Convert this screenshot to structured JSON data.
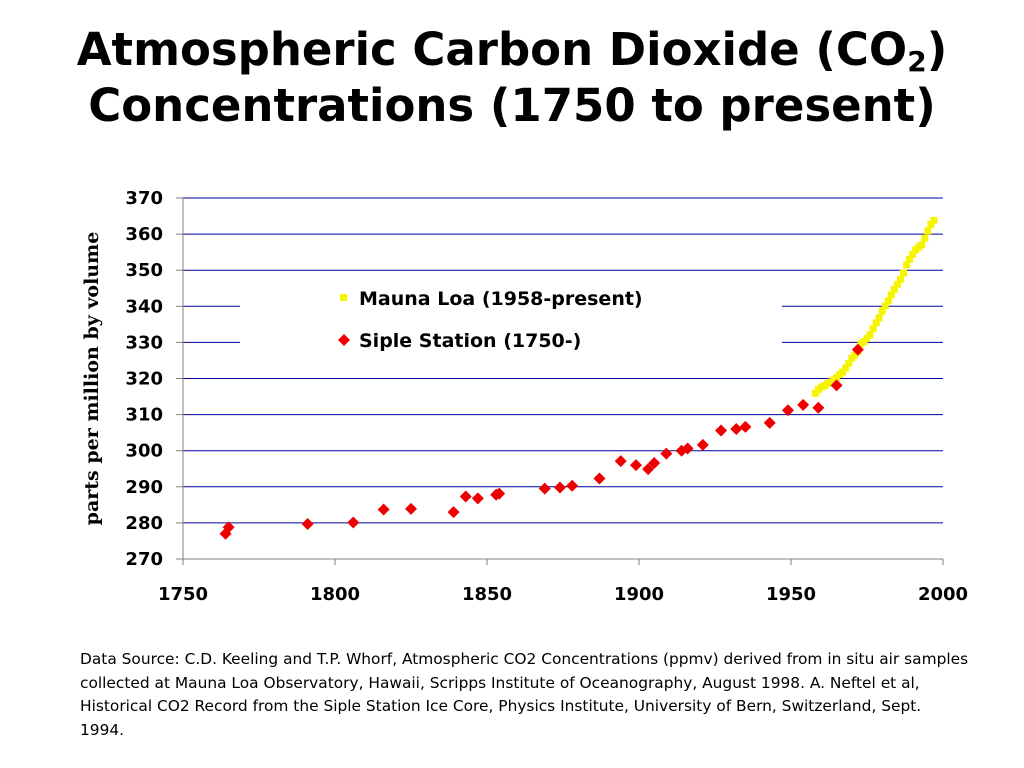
{
  "title": {
    "line1_prefix": "Atmospheric Carbon Dioxide (CO",
    "line1_subscript": "2",
    "line1_suffix": ")",
    "line2": "Concentrations (1750 to present)"
  },
  "source_note": "Data Source: C.D. Keeling and T.P. Whorf, Atmospheric CO2 Concentrations (ppmv) derived from in situ air samples collected at Mauna Loa Observatory, Hawaii, Scripps  Institute of Oceanography, August 1998.  A. Neftel et al, Historical CO2 Record from the Siple Station Ice Core, Physics Institute, University of Bern, Switzerland, Sept.  1994.",
  "colors": {
    "mauna_loa": "#f5f500",
    "siple": "#ee0000",
    "gridline": "#0000a0",
    "axis": "#808080"
  },
  "chart_data": {
    "type": "scatter",
    "title": "Atmospheric Carbon Dioxide (CO2) Concentrations (1750 to present)",
    "xlabel": "",
    "ylabel": "parts per million by volume",
    "xlim": [
      1750,
      2000
    ],
    "ylim": [
      270,
      370
    ],
    "xticks": [
      1750,
      1800,
      1850,
      1900,
      1950,
      2000
    ],
    "yticks": [
      270,
      280,
      290,
      300,
      310,
      320,
      330,
      340,
      350,
      360,
      370
    ],
    "grid": true,
    "legend_placement": "top-center",
    "series": [
      {
        "name": "Mauna Loa (1958-present)",
        "marker": "square",
        "color": "#f5f500",
        "x": [
          1958,
          1959,
          1960,
          1961,
          1962,
          1963,
          1964,
          1965,
          1966,
          1967,
          1968,
          1969,
          1970,
          1971,
          1972,
          1973,
          1974,
          1975,
          1976,
          1977,
          1978,
          1979,
          1980,
          1981,
          1982,
          1983,
          1984,
          1985,
          1986,
          1987,
          1988,
          1989,
          1990,
          1991,
          1992,
          1993,
          1994,
          1995,
          1996,
          1997
        ],
        "y": [
          315.9,
          316.9,
          317.6,
          318.0,
          318.6,
          319.0,
          319.6,
          320.2,
          321.1,
          321.8,
          322.9,
          324.2,
          325.6,
          326.5,
          327.4,
          329.6,
          330.2,
          331.1,
          332.1,
          333.8,
          335.4,
          336.8,
          338.7,
          340.1,
          341.5,
          343.1,
          344.7,
          346.1,
          347.4,
          349.2,
          351.5,
          353.0,
          354.4,
          355.6,
          356.4,
          357.0,
          358.9,
          360.9,
          362.7,
          363.8
        ]
      },
      {
        "name": "Siple Station (1750-)",
        "marker": "diamond",
        "color": "#ee0000",
        "x": [
          1764,
          1765,
          1791,
          1806,
          1816,
          1825,
          1839,
          1843,
          1847,
          1853,
          1854,
          1869,
          1874,
          1878,
          1887,
          1894,
          1899,
          1903,
          1905,
          1909,
          1914,
          1916,
          1921,
          1927,
          1932,
          1935,
          1943,
          1949,
          1954,
          1959,
          1965,
          1972
        ],
        "y": [
          277.0,
          278.8,
          279.7,
          280.1,
          283.7,
          283.9,
          283.0,
          287.3,
          286.8,
          287.8,
          288.1,
          289.5,
          289.8,
          290.3,
          292.3,
          297.1,
          296.0,
          294.9,
          296.6,
          299.2,
          300.0,
          300.6,
          301.6,
          305.6,
          306.0,
          306.6,
          307.7,
          311.2,
          312.7,
          311.9,
          318.1,
          328.0
        ]
      }
    ]
  }
}
